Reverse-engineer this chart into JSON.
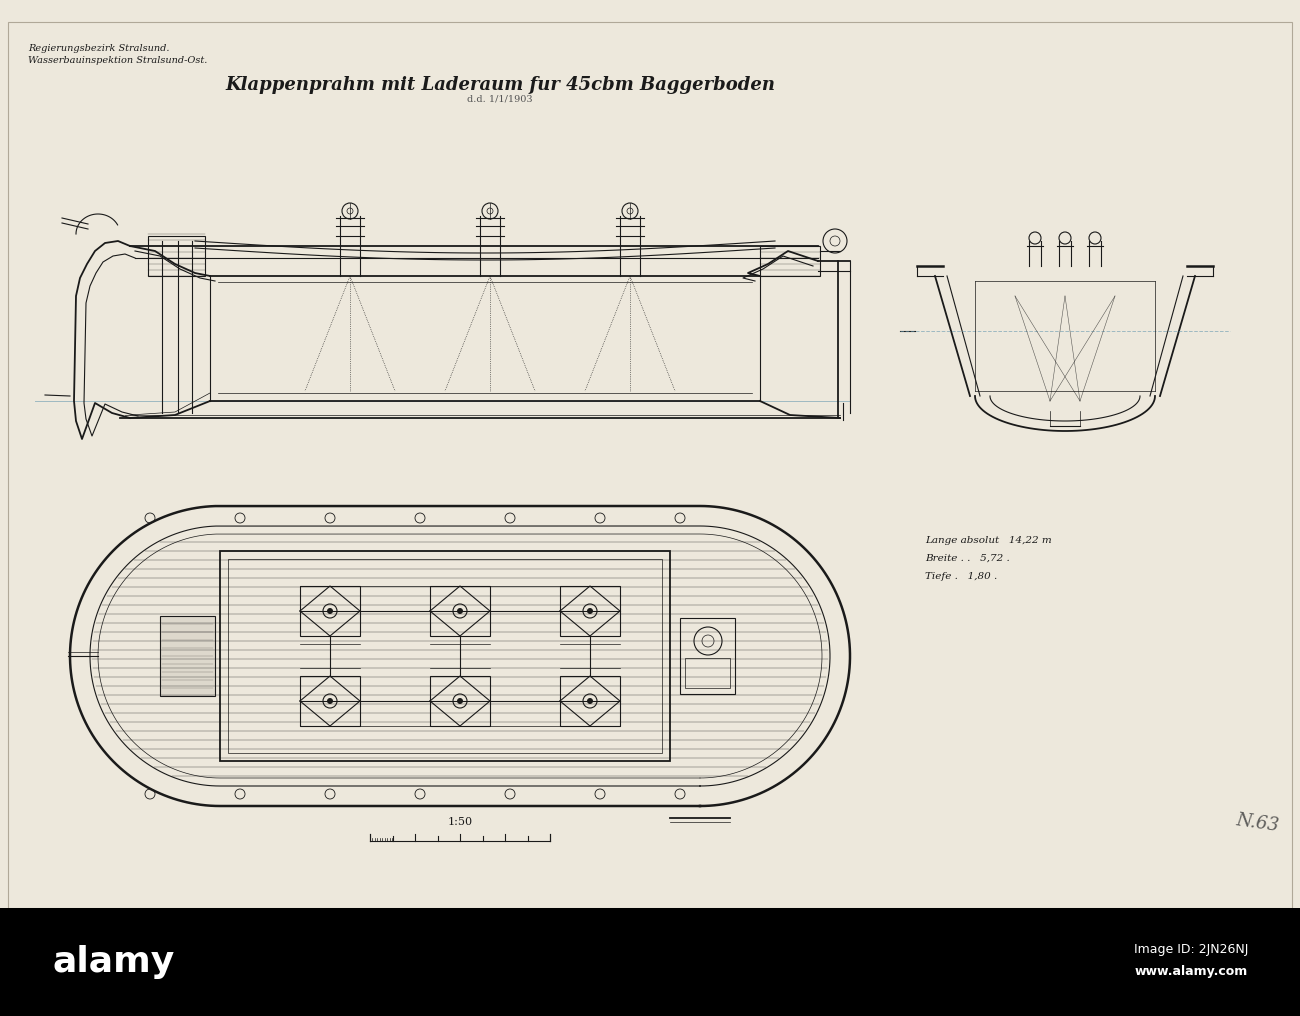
{
  "bg_color": "#ede8dc",
  "paper_color": "#ede8dc",
  "line_color": "#1a1a1a",
  "title_text": "Klappenprahm mit Laderaum fur 45cbm Baggerboden",
  "subtitle_text": "d.d. 1/1/1903",
  "header_line1": "Regierungsbezirk Stralsund.",
  "header_line2": "Wasserbauinspektion Stralsund-Ost.",
  "scale_text": "1:50",
  "dim_line1": "Lange absolut   14,22 m",
  "dim_line2": "Breite . .   5,72 .",
  "dim_line3": "Tiefe .   1,80 .",
  "watermark": "N.63",
  "alamy_text": "alamy",
  "image_id": "Image ID: 2JN26NJ",
  "alamy_url": "www.alamy.com"
}
